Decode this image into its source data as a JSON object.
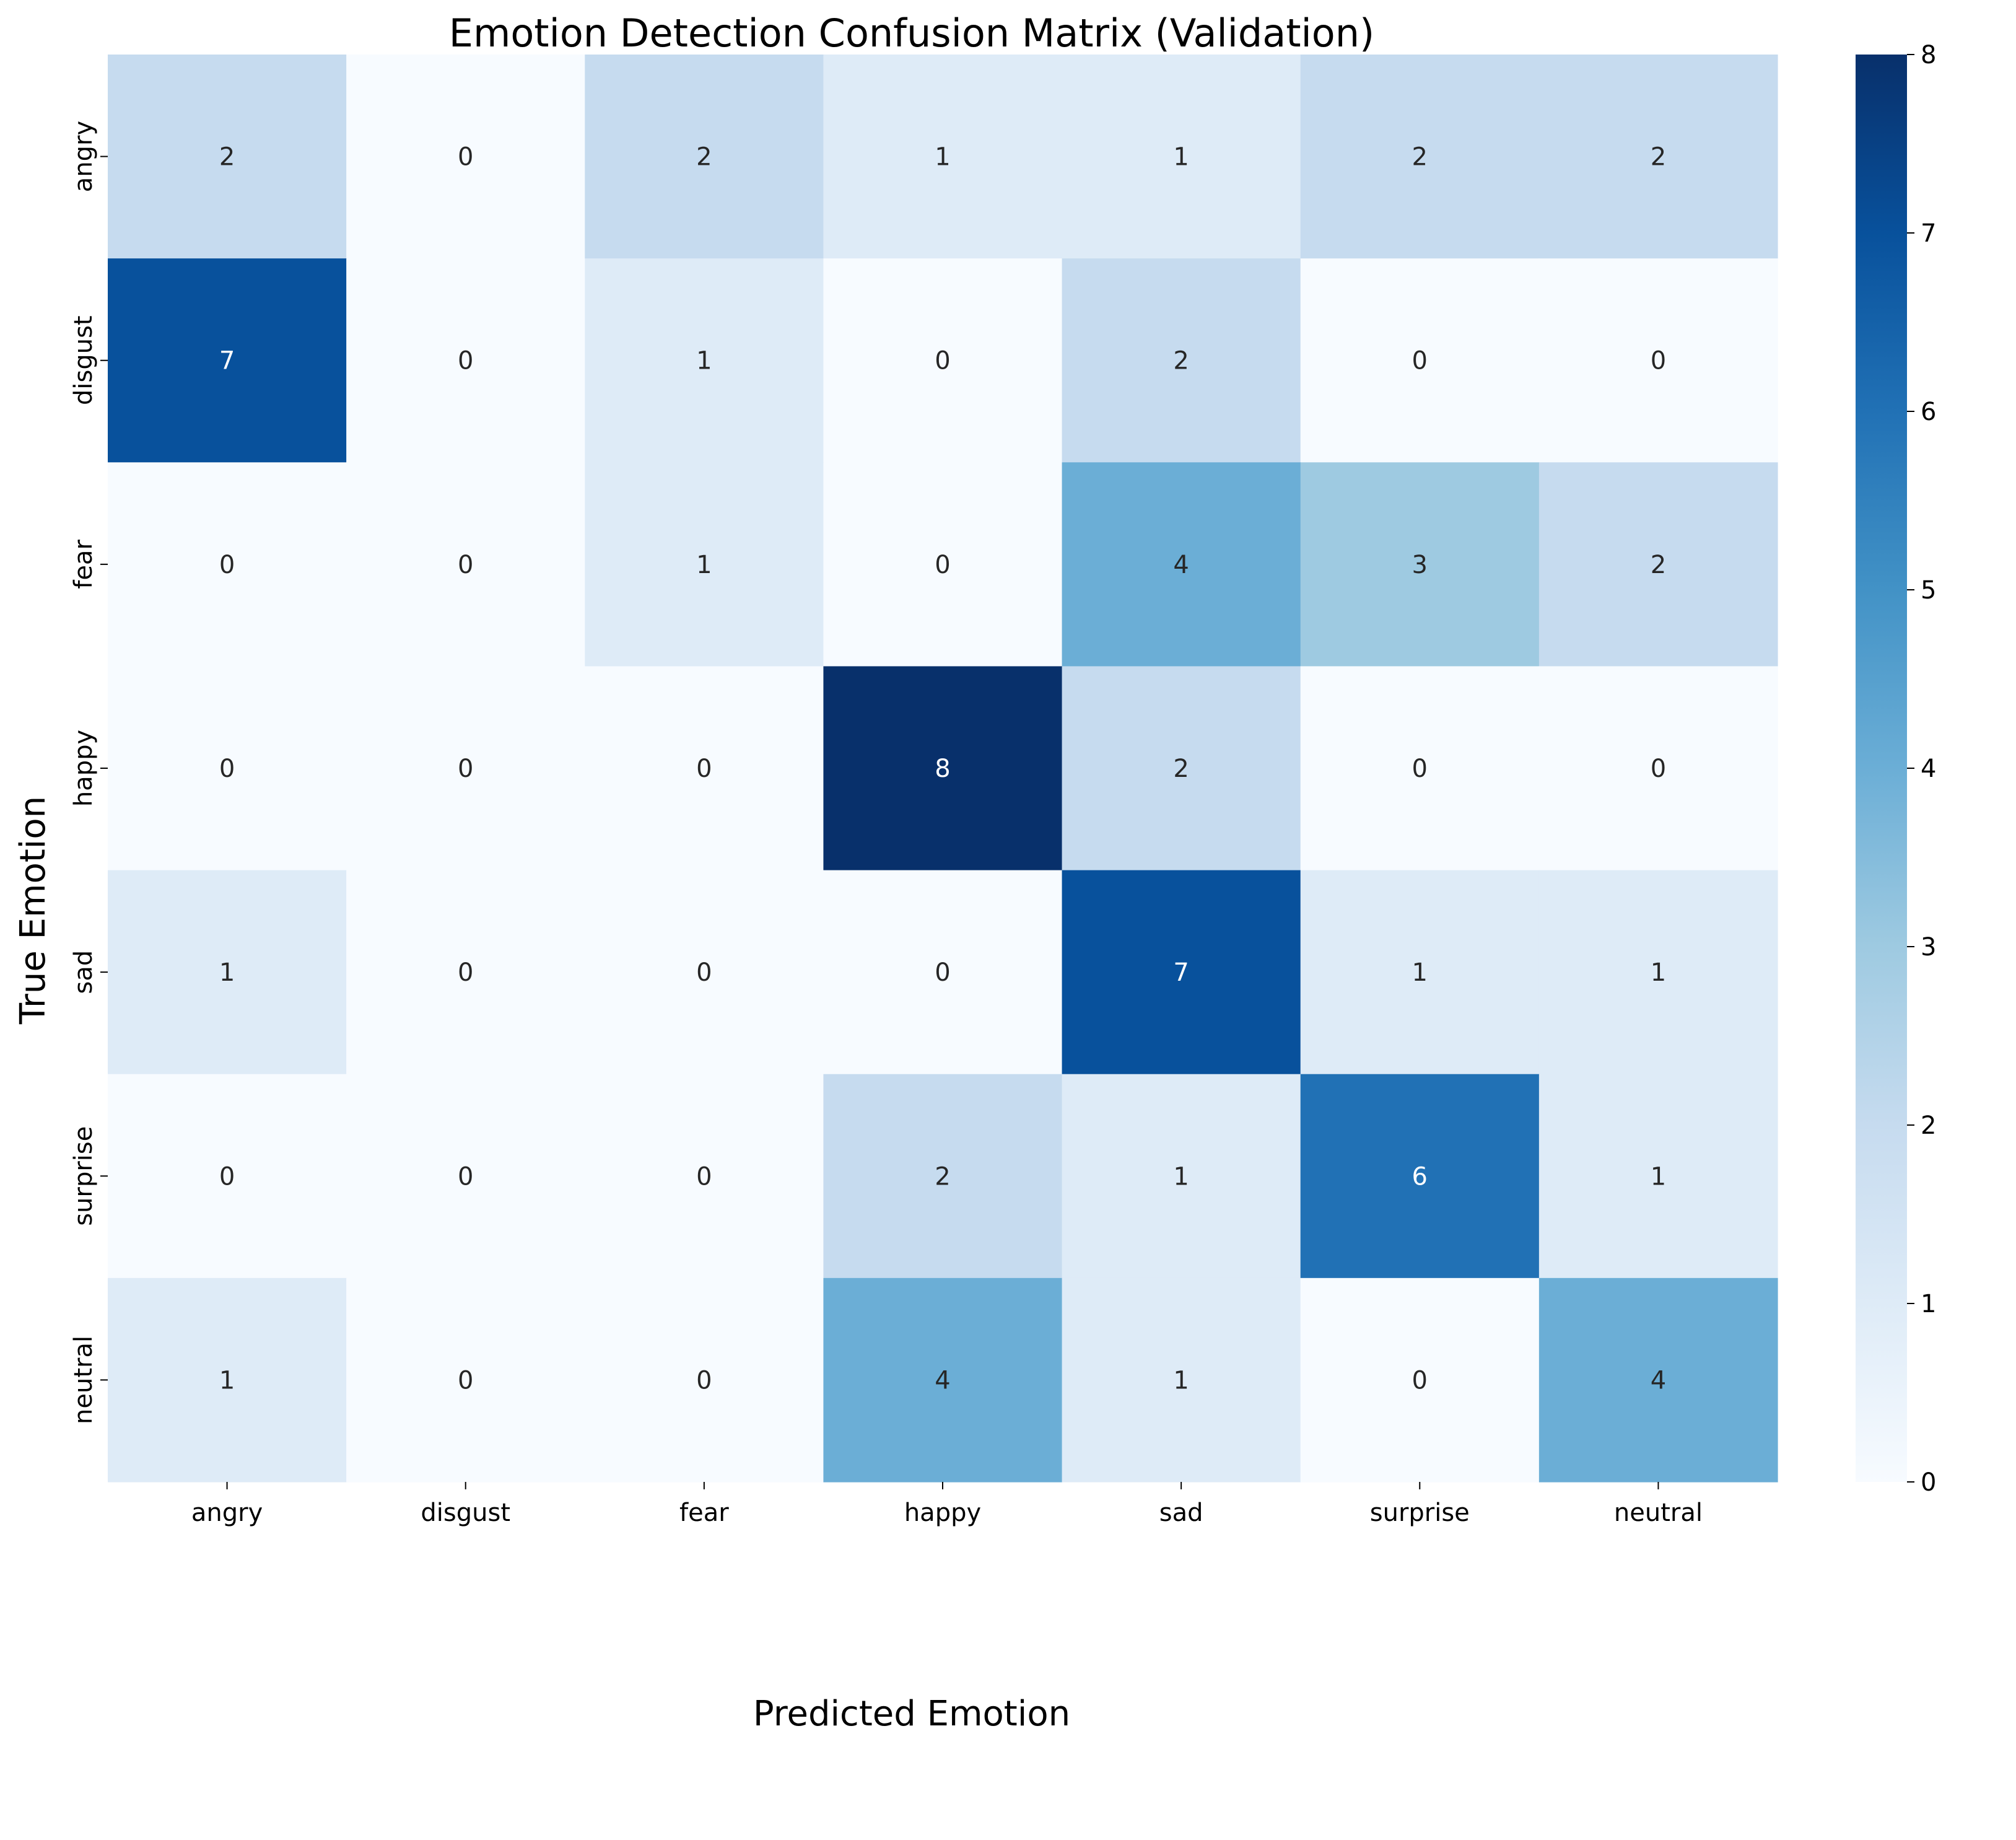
{
  "chart_data": {
    "type": "heatmap",
    "title": "Emotion Detection Confusion Matrix (Validation)",
    "xlabel": "Predicted Emotion",
    "ylabel": "True Emotion",
    "x_categories": [
      "angry",
      "disgust",
      "fear",
      "happy",
      "sad",
      "surprise",
      "neutral"
    ],
    "y_categories": [
      "angry",
      "disgust",
      "fear",
      "happy",
      "sad",
      "surprise",
      "neutral"
    ],
    "values": [
      [
        2,
        0,
        2,
        1,
        1,
        2,
        2
      ],
      [
        7,
        0,
        1,
        0,
        2,
        0,
        0
      ],
      [
        0,
        0,
        1,
        0,
        4,
        3,
        2
      ],
      [
        0,
        0,
        0,
        8,
        2,
        0,
        0
      ],
      [
        1,
        0,
        0,
        0,
        7,
        1,
        1
      ],
      [
        0,
        0,
        0,
        2,
        1,
        6,
        1
      ],
      [
        1,
        0,
        0,
        4,
        1,
        0,
        4
      ]
    ],
    "colormap": "Blues",
    "colorbar": {
      "range": [
        0,
        8
      ],
      "ticks": [
        "0",
        "1",
        "2",
        "3",
        "4",
        "5",
        "6",
        "7",
        "8"
      ],
      "position": "right"
    },
    "annotations_shown": true,
    "grid": false
  }
}
